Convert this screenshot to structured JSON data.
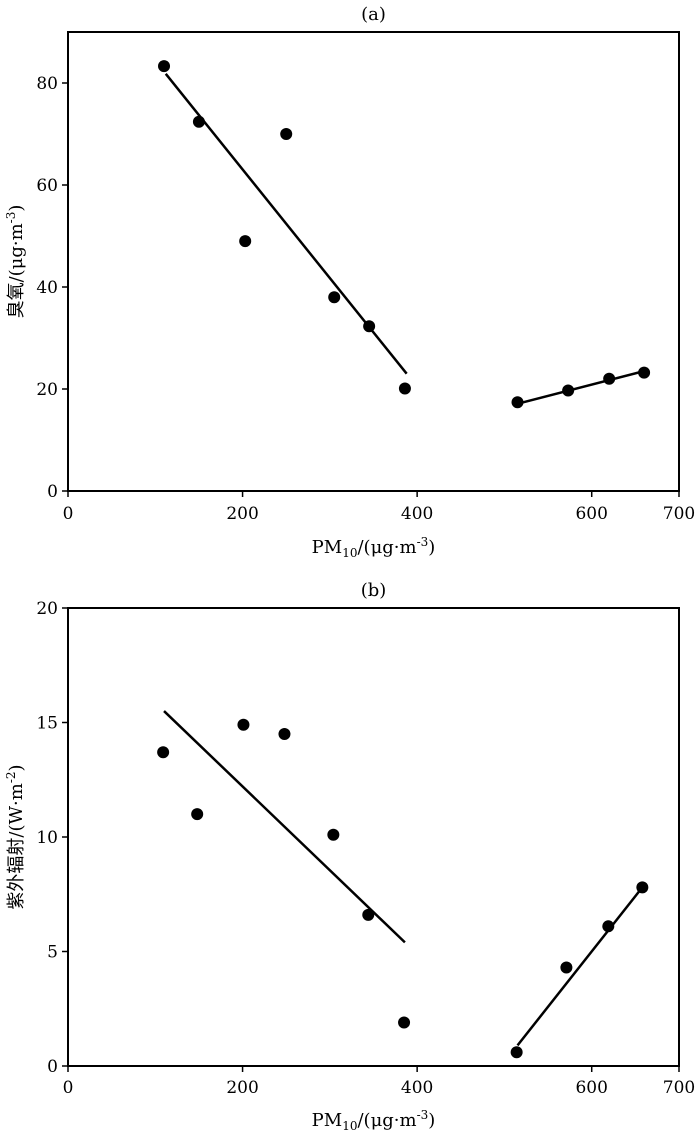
{
  "chart_data": [
    {
      "type": "scatter",
      "title": "(a)",
      "xlabel": {
        "main": "PM",
        "sub": "10",
        "unit": "/(μg·m",
        "sup": "-3",
        "close": ")"
      },
      "ylabel": {
        "main": "臭氧/(μg·m",
        "sup": "-3",
        "close": ")"
      },
      "xlim": [
        0,
        700
      ],
      "ylim": [
        0,
        90
      ],
      "xticks": [
        0,
        200,
        400,
        600,
        700
      ],
      "yticks": [
        0,
        20,
        40,
        60,
        80
      ],
      "grid": false,
      "points": [
        {
          "x": 110,
          "y": 83.3
        },
        {
          "x": 150,
          "y": 72.4
        },
        {
          "x": 203,
          "y": 49.0
        },
        {
          "x": 250,
          "y": 70.0
        },
        {
          "x": 305,
          "y": 38.0
        },
        {
          "x": 345,
          "y": 32.3
        },
        {
          "x": 386,
          "y": 20.1
        },
        {
          "x": 515,
          "y": 17.4
        },
        {
          "x": 573,
          "y": 19.7
        },
        {
          "x": 620,
          "y": 22.0
        },
        {
          "x": 660,
          "y": 23.2
        }
      ],
      "fit_lines": [
        {
          "x": [
            112,
            388
          ],
          "y": [
            81.8,
            23.0
          ]
        },
        {
          "x": [
            517,
            662
          ],
          "y": [
            17.2,
            23.6
          ]
        }
      ]
    },
    {
      "type": "scatter",
      "title": "(b)",
      "xlabel": {
        "main": "PM",
        "sub": "10",
        "unit": "/(μg·m",
        "sup": "-3",
        "close": ")"
      },
      "ylabel": {
        "main": "紫外辐射/(W·m",
        "sup": "-2",
        "close": ")"
      },
      "xlim": [
        0,
        700
      ],
      "ylim": [
        0,
        20
      ],
      "xticks": [
        0,
        200,
        400,
        600,
        700
      ],
      "yticks": [
        0,
        5,
        10,
        15,
        20
      ],
      "grid": false,
      "points": [
        {
          "x": 109,
          "y": 13.7
        },
        {
          "x": 148,
          "y": 11.0
        },
        {
          "x": 201,
          "y": 14.9
        },
        {
          "x": 248,
          "y": 14.5
        },
        {
          "x": 304,
          "y": 10.1
        },
        {
          "x": 344,
          "y": 6.6
        },
        {
          "x": 385,
          "y": 1.9
        },
        {
          "x": 514,
          "y": 0.6
        },
        {
          "x": 571,
          "y": 4.3
        },
        {
          "x": 619,
          "y": 6.1
        },
        {
          "x": 658,
          "y": 7.8
        }
      ],
      "fit_lines": [
        {
          "x": [
            110,
            386
          ],
          "y": [
            15.5,
            5.4
          ]
        },
        {
          "x": [
            515,
            660
          ],
          "y": [
            0.9,
            7.9
          ]
        }
      ]
    }
  ]
}
